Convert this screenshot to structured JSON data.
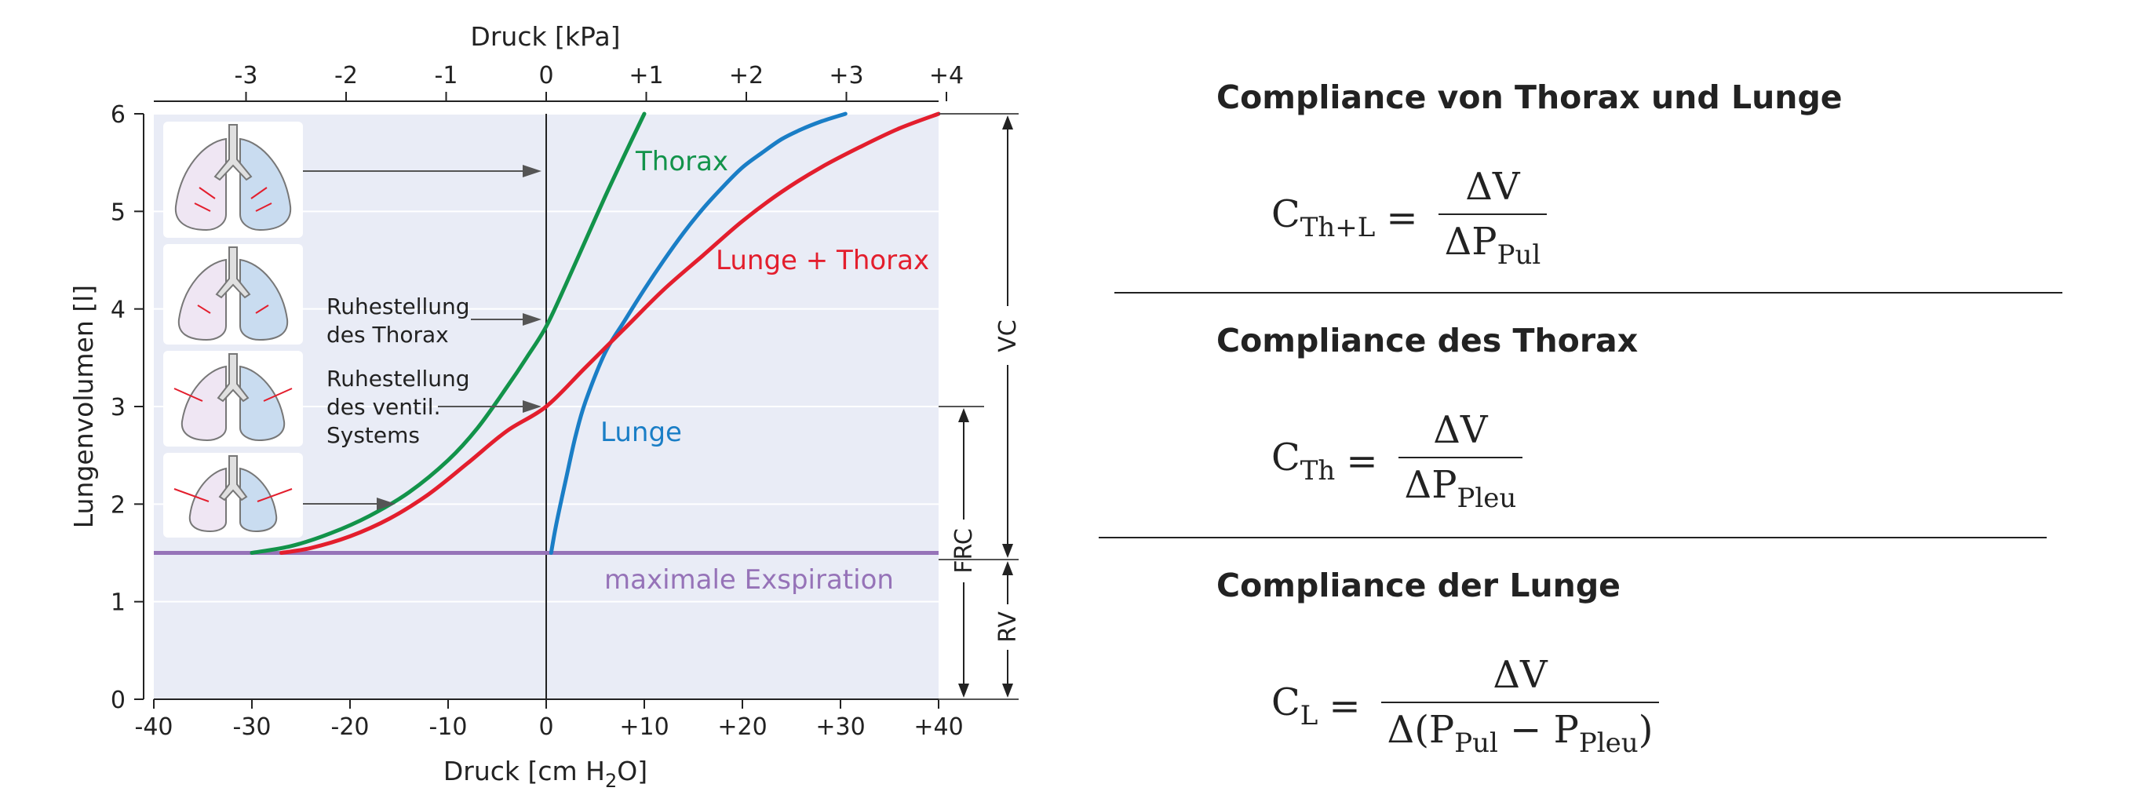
{
  "chart_data": {
    "type": "line",
    "top_axis": {
      "title": "Druck [kPa]",
      "ticks": [
        {
          "label": "-3",
          "cmH2O": -30.6
        },
        {
          "label": "-2",
          "cmH2O": -20.4
        },
        {
          "label": "-1",
          "cmH2O": -10.2
        },
        {
          "label": "0",
          "cmH2O": 0
        },
        {
          "label": "+1",
          "cmH2O": 10.2
        },
        {
          "label": "+2",
          "cmH2O": 20.4
        },
        {
          "label": "+3",
          "cmH2O": 30.6
        },
        {
          "label": "+4",
          "cmH2O": 40.8
        }
      ]
    },
    "x_axis": {
      "title_main": "Druck [cm H",
      "title_sub": "2",
      "title_end": "O]",
      "range": [
        -40,
        40
      ],
      "ticks": [
        {
          "label": "-40",
          "value": -40
        },
        {
          "label": "-30",
          "value": -30
        },
        {
          "label": "-20",
          "value": -20
        },
        {
          "label": "-10",
          "value": -10
        },
        {
          "label": "0",
          "value": 0
        },
        {
          "label": "+10",
          "value": 10
        },
        {
          "label": "+20",
          "value": 20
        },
        {
          "label": "+30",
          "value": 30
        },
        {
          "label": "+40",
          "value": 40
        }
      ]
    },
    "y_axis": {
      "title": "Lungenvolumen [l]",
      "range": [
        0,
        6
      ],
      "ticks": [
        {
          "label": "0",
          "value": 0
        },
        {
          "label": "1",
          "value": 1
        },
        {
          "label": "2",
          "value": 2
        },
        {
          "label": "3",
          "value": 3
        },
        {
          "label": "4",
          "value": 4
        },
        {
          "label": "5",
          "value": 5
        },
        {
          "label": "6",
          "value": 6
        }
      ]
    },
    "grid": true,
    "series": [
      {
        "name": "Thorax",
        "color": "#12934a",
        "x": [
          -30,
          -26,
          -22,
          -18,
          -14,
          -10,
          -7,
          -4,
          -2,
          0,
          2,
          4,
          6,
          8,
          10
        ],
        "y": [
          1.5,
          1.57,
          1.7,
          1.88,
          2.12,
          2.45,
          2.78,
          3.2,
          3.5,
          3.82,
          4.25,
          4.7,
          5.15,
          5.58,
          6.0
        ]
      },
      {
        "name": "Lunge",
        "color": "#1a7ec6",
        "x": [
          0.5,
          1,
          2,
          3,
          4,
          6,
          8,
          10,
          12,
          14,
          16,
          18,
          20,
          22,
          24,
          26,
          28,
          30.5
        ],
        "y": [
          1.5,
          1.78,
          2.25,
          2.7,
          3.05,
          3.55,
          3.88,
          4.2,
          4.5,
          4.78,
          5.03,
          5.25,
          5.45,
          5.6,
          5.74,
          5.84,
          5.92,
          6.0
        ]
      },
      {
        "name": "Lunge + Thorax",
        "color": "#e31e2d",
        "x": [
          -27,
          -24,
          -20,
          -16,
          -12,
          -8,
          -4,
          0,
          4,
          8,
          12,
          16,
          20,
          24,
          28,
          32,
          36,
          40
        ],
        "y": [
          1.5,
          1.55,
          1.67,
          1.85,
          2.1,
          2.42,
          2.75,
          3.0,
          3.4,
          3.8,
          4.2,
          4.55,
          4.9,
          5.2,
          5.45,
          5.66,
          5.85,
          6.0
        ]
      }
    ],
    "baseline": {
      "label": "maximale Exspiration",
      "value": 1.5,
      "color": "#9673b8"
    },
    "curve_labels": {
      "thorax": "Thorax",
      "lunge": "Lunge",
      "lunge_thorax": "Lunge + Thorax"
    },
    "annotations": {
      "ruhe_thorax": [
        "Ruhestellung",
        "des Thorax"
      ],
      "ruhe_system": [
        "Ruhestellung",
        "des ventil.",
        "Systems"
      ]
    },
    "volumes": {
      "vc": "VC",
      "frc": "FRC",
      "rv": "RV"
    }
  },
  "formulas": {
    "section1": {
      "title": "Compliance von Thorax und Lunge",
      "lhs": "C",
      "lhs_sub": "Th+L",
      "eq": "=",
      "num": "ΔV",
      "den": "ΔP",
      "den_sub": "Pul"
    },
    "section2": {
      "title": "Compliance des Thorax",
      "lhs": "C",
      "lhs_sub": "Th",
      "eq": "=",
      "num": "ΔV",
      "den": "ΔP",
      "den_sub": "Pleu"
    },
    "section3": {
      "title": "Compliance der Lunge",
      "lhs": "C",
      "lhs_sub": "L",
      "eq": "=",
      "num": "ΔV",
      "den_a": "Δ(P",
      "den_a_sub": "Pul",
      "den_op": " − P",
      "den_b_sub": "Pleu",
      "den_close": ")"
    }
  }
}
